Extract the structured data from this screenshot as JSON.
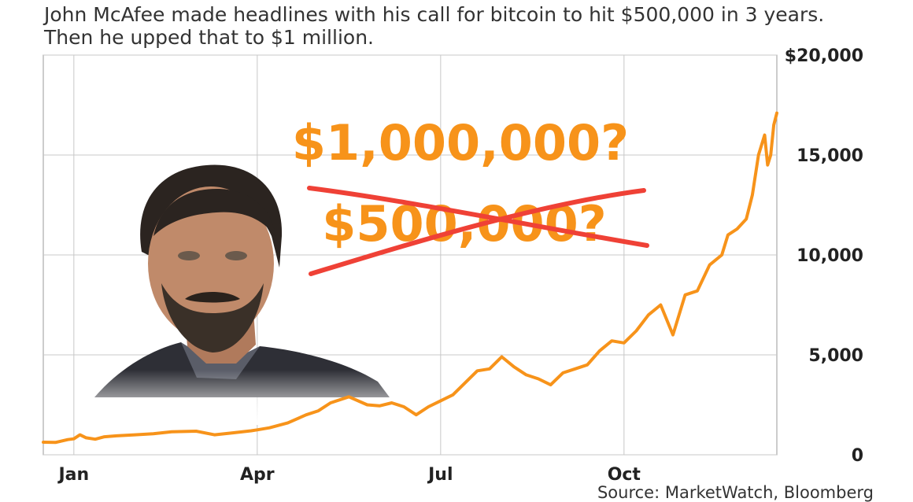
{
  "subtitle": {
    "line1": "John McAfee made headlines with his call for bitcoin to hit $500,000 in 3 years.",
    "line2": "Then he upped that to $1 million."
  },
  "source": "Source: MarketWatch, Bloomberg",
  "annotations": {
    "new_target": "$1,000,000?",
    "old_target": "$500,000?"
  },
  "colors": {
    "line": "#f7931a",
    "strike": "#ef4136",
    "grid": "#c8c8c8"
  },
  "chart_data": {
    "type": "line",
    "title": "",
    "xlabel": "",
    "ylabel": "",
    "ylim": [
      0,
      20000
    ],
    "yticks": [
      0,
      5000,
      10000,
      15000,
      20000
    ],
    "ytick_labels": [
      "0",
      "5,000",
      "10,000",
      "15,000",
      "$20,000"
    ],
    "xticks": [
      "Jan",
      "Apr",
      "Jul",
      "Oct"
    ],
    "xlim_months": [
      -0.5,
      11.5
    ],
    "grid": true,
    "series": [
      {
        "name": "",
        "x": [
          -0.5,
          -0.3,
          -0.1,
          0.0,
          0.1,
          0.2,
          0.35,
          0.5,
          0.7,
          1.0,
          1.3,
          1.6,
          2.0,
          2.3,
          2.6,
          2.9,
          3.0,
          3.2,
          3.5,
          3.8,
          4.0,
          4.2,
          4.5,
          4.8,
          5.0,
          5.2,
          5.4,
          5.6,
          5.8,
          6.0,
          6.2,
          6.4,
          6.6,
          6.8,
          7.0,
          7.2,
          7.4,
          7.6,
          7.8,
          8.0,
          8.2,
          8.4,
          8.6,
          8.8,
          9.0,
          9.2,
          9.4,
          9.6,
          9.8,
          10.0,
          10.2,
          10.4,
          10.6,
          10.7,
          10.85,
          11.0,
          11.1,
          11.2,
          11.3,
          11.35,
          11.4,
          11.45,
          11.5
        ],
        "values": [
          630,
          620,
          760,
          800,
          1000,
          850,
          780,
          900,
          950,
          1000,
          1050,
          1150,
          1180,
          1000,
          1100,
          1200,
          1250,
          1350,
          1600,
          2000,
          2200,
          2600,
          2900,
          2500,
          2450,
          2600,
          2400,
          2000,
          2400,
          2700,
          3000,
          3600,
          4200,
          4300,
          4900,
          4400,
          4000,
          3800,
          3500,
          4100,
          4300,
          4500,
          5200,
          5700,
          5600,
          6200,
          7000,
          7500,
          6000,
          8000,
          8200,
          9500,
          10000,
          11000,
          11300,
          11800,
          13000,
          15000,
          16000,
          14500,
          15000,
          16500,
          17100
        ]
      }
    ]
  }
}
